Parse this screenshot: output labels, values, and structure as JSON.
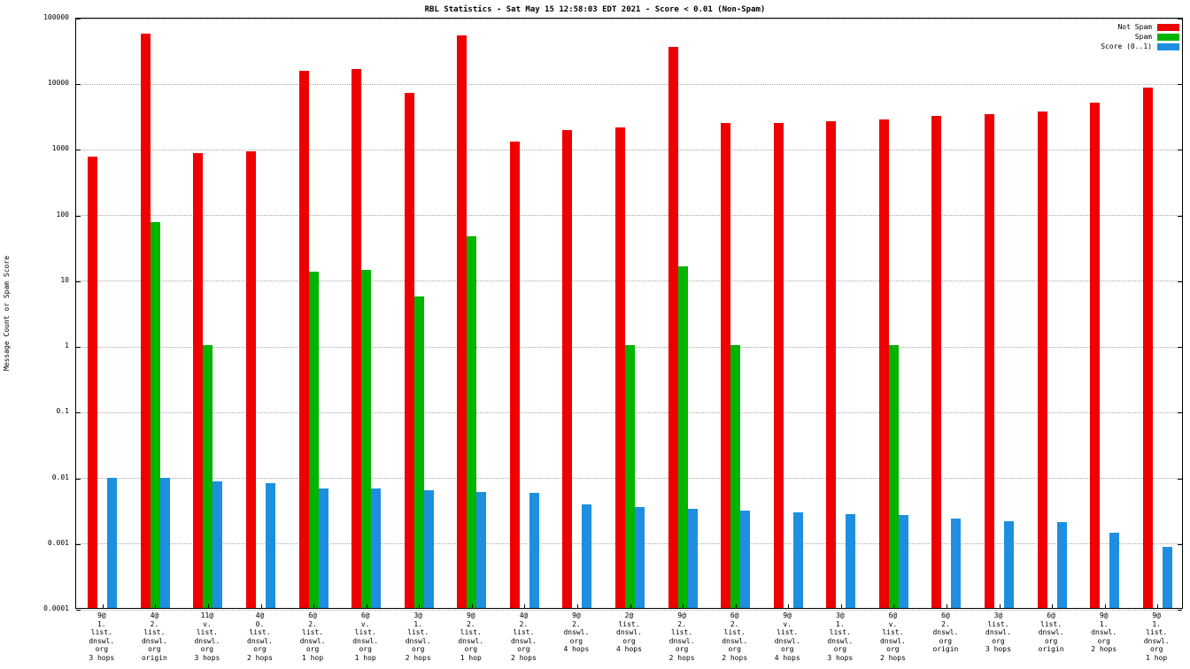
{
  "title": "RBL Statistics - Sat May 15 12:58:03 EDT 2021 - Score < 0.01 (Non-Spam)",
  "legend": [
    {
      "label": "Not Spam",
      "color": "#ee0000"
    },
    {
      "label": "Spam",
      "color": "#00b400"
    },
    {
      "label": "Score (0..1)",
      "color": "#1e8fe0"
    }
  ],
  "chart_data": {
    "type": "bar",
    "title": "RBL Statistics - Sat May 15 12:58:03 EDT 2021 - Score < 0.01 (Non-Spam)",
    "xlabel": "",
    "ylabel": "Message Count or Spam Score",
    "yscale": "log",
    "ylim": [
      0.0001,
      100000
    ],
    "ytick_labels": [
      "100000",
      "10000",
      "1000",
      "100",
      "10",
      "1",
      "0.1",
      "0.01",
      "0.001",
      "0.0001"
    ],
    "grid": true,
    "legend_position": "top-right",
    "categories": [
      [
        "9@",
        "1.",
        "list.",
        "dnswl.",
        "org",
        "3 hops"
      ],
      [
        "4@",
        "2.",
        "list.",
        "dnswl.",
        "org",
        "origin"
      ],
      [
        "11@",
        "v.",
        "list.",
        "dnswl.",
        "org",
        "3 hops"
      ],
      [
        "4@",
        "0.",
        "list.",
        "dnswl.",
        "org",
        "2 hops"
      ],
      [
        "6@",
        "2.",
        "list.",
        "dnswl.",
        "org",
        "1 hop"
      ],
      [
        "6@",
        "v.",
        "list.",
        "dnswl.",
        "org",
        "1 hop"
      ],
      [
        "3@",
        "1.",
        "list.",
        "dnswl.",
        "org",
        "2 hops"
      ],
      [
        "9@",
        "2.",
        "list.",
        "dnswl.",
        "org",
        "1 hop"
      ],
      [
        "4@",
        "2.",
        "list.",
        "dnswl.",
        "org",
        "2 hops"
      ],
      [
        "9@",
        "2.",
        "dnswl.",
        "org",
        "4 hops"
      ],
      [
        "2@",
        "list.",
        "dnswl.",
        "org",
        "4 hops"
      ],
      [
        "9@",
        "2.",
        "list.",
        "dnswl.",
        "org",
        "2 hops"
      ],
      [
        "6@",
        "2.",
        "list.",
        "dnswl.",
        "org",
        "2 hops"
      ],
      [
        "9@",
        "v.",
        "list.",
        "dnswl.",
        "org",
        "4 hops"
      ],
      [
        "3@",
        "1.",
        "list.",
        "dnswl.",
        "org",
        "3 hops"
      ],
      [
        "6@",
        "v.",
        "list.",
        "dnswl.",
        "org",
        "2 hops"
      ],
      [
        "6@",
        "2.",
        "dnswl.",
        "org",
        "origin"
      ],
      [
        "3@",
        "list.",
        "dnswl.",
        "org",
        "3 hops"
      ],
      [
        "6@",
        "list.",
        "dnswl.",
        "org",
        "origin"
      ],
      [
        "9@",
        "1.",
        "dnswl.",
        "org",
        "2 hops"
      ],
      [
        "9@",
        "1.",
        "list.",
        "dnswl.",
        "org",
        "1 hop"
      ]
    ],
    "series": [
      {
        "name": "Not Spam",
        "color": "#ee0000",
        "values": [
          750,
          55000,
          850,
          900,
          15000,
          16000,
          7000,
          52000,
          1250,
          1900,
          2100,
          35000,
          2400,
          2450,
          2600,
          2700,
          3100,
          3300,
          3600,
          5000,
          8500
        ]
      },
      {
        "name": "Spam",
        "color": "#00b400",
        "values": [
          null,
          75,
          1,
          null,
          13,
          14,
          5.5,
          45,
          null,
          null,
          1,
          16,
          1,
          null,
          null,
          1,
          null,
          null,
          null,
          null,
          null
        ]
      },
      {
        "name": "Score (0..1)",
        "color": "#1e8fe0",
        "values": [
          0.0097,
          0.0095,
          0.0085,
          0.008,
          0.0066,
          0.0066,
          0.0062,
          0.0058,
          0.0056,
          0.0038,
          0.0034,
          0.0032,
          0.003,
          0.0029,
          0.0027,
          0.0026,
          0.0023,
          0.0021,
          0.002,
          0.0014,
          0.00085
        ]
      }
    ]
  }
}
